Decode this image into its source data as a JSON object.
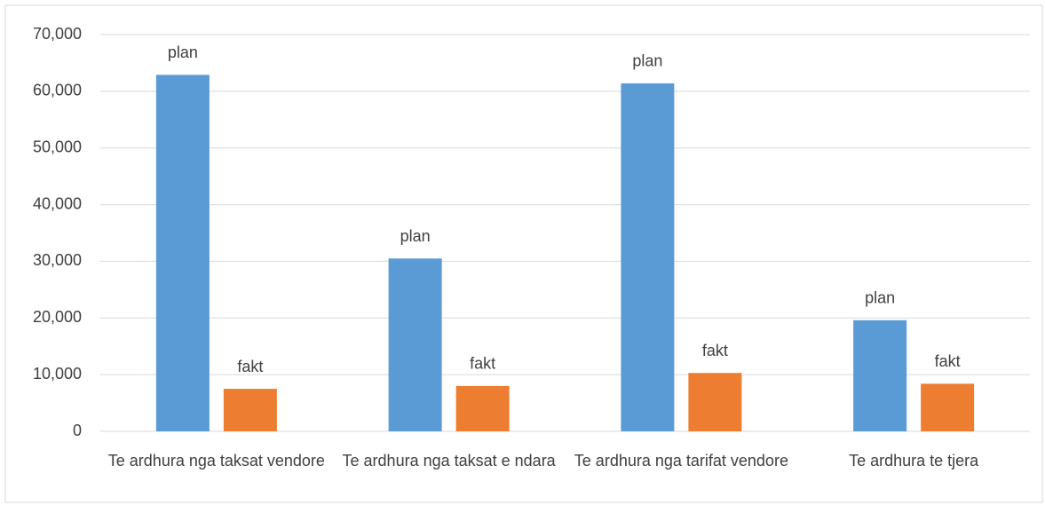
{
  "chart_data": {
    "type": "bar",
    "categories": [
      "Te ardhura nga taksat vendore",
      "Te ardhura nga taksat e ndara",
      "Te ardhura nga tarifat vendore",
      "Te ardhura te tjera"
    ],
    "series": [
      {
        "name": "plan",
        "color": "#5b9bd5",
        "values": [
          62900,
          30500,
          61400,
          19600
        ]
      },
      {
        "name": "fakt",
        "color": "#ed7d31",
        "values": [
          7500,
          8000,
          10300,
          8400
        ]
      }
    ],
    "ylim": [
      0,
      70000
    ],
    "yticks": [
      {
        "value": 0,
        "label": "0"
      },
      {
        "value": 10000,
        "label": "10,000"
      },
      {
        "value": 20000,
        "label": "20,000"
      },
      {
        "value": 30000,
        "label": "30,000"
      },
      {
        "value": 40000,
        "label": "40,000"
      },
      {
        "value": 50000,
        "label": "50,000"
      },
      {
        "value": 60000,
        "label": "60,000"
      },
      {
        "value": 70000,
        "label": "70,000"
      }
    ],
    "grid": true
  }
}
